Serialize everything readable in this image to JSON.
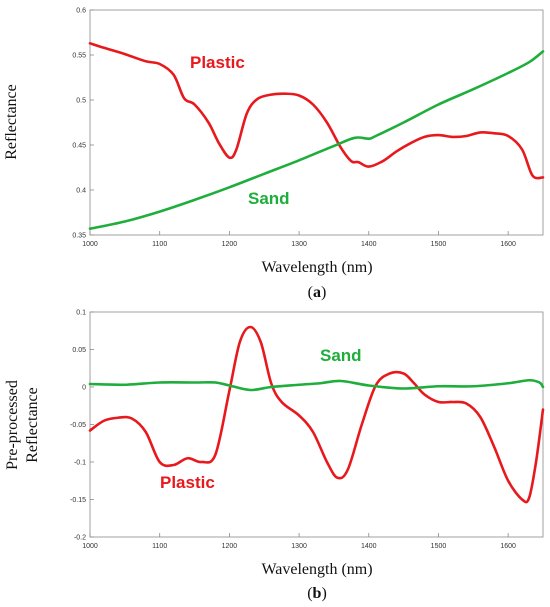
{
  "chart_data": [
    {
      "type": "line",
      "panel_label": "(a)",
      "panel_letter": "a",
      "xlabel": "Wavelength (nm)",
      "ylabel": "Reflectance",
      "xlim": [
        1000,
        1650
      ],
      "ylim": [
        0.35,
        0.6
      ],
      "xticks": [
        "1000",
        "1100",
        "1200",
        "1300",
        "1400",
        "1500",
        "1600"
      ],
      "yticks": [
        "0.35",
        "0.4",
        "0.45",
        "0.5",
        "0.55",
        "0.6"
      ],
      "series": [
        {
          "name": "Plastic",
          "color": "#e8191c",
          "x": [
            1000,
            1020,
            1050,
            1080,
            1100,
            1120,
            1135,
            1150,
            1170,
            1185,
            1200,
            1210,
            1225,
            1240,
            1260,
            1280,
            1300,
            1320,
            1340,
            1360,
            1375,
            1385,
            1400,
            1420,
            1440,
            1460,
            1480,
            1500,
            1520,
            1540,
            1560,
            1580,
            1600,
            1620,
            1635,
            1650
          ],
          "y": [
            0.563,
            0.558,
            0.551,
            0.543,
            0.54,
            0.528,
            0.502,
            0.495,
            0.475,
            0.452,
            0.436,
            0.445,
            0.485,
            0.501,
            0.506,
            0.507,
            0.505,
            0.495,
            0.475,
            0.447,
            0.432,
            0.431,
            0.426,
            0.432,
            0.443,
            0.452,
            0.459,
            0.461,
            0.459,
            0.46,
            0.464,
            0.463,
            0.46,
            0.445,
            0.416,
            0.414
          ]
        },
        {
          "name": "Sand",
          "color": "#1fae3c",
          "x": [
            1000,
            1050,
            1100,
            1150,
            1200,
            1250,
            1300,
            1350,
            1380,
            1400,
            1410,
            1450,
            1500,
            1550,
            1600,
            1630,
            1650
          ],
          "y": [
            0.357,
            0.365,
            0.376,
            0.389,
            0.403,
            0.418,
            0.433,
            0.449,
            0.458,
            0.457,
            0.46,
            0.475,
            0.495,
            0.512,
            0.53,
            0.542,
            0.554
          ]
        }
      ]
    },
    {
      "type": "line",
      "panel_label": "(b)",
      "panel_letter": "b",
      "xlabel": "Wavelength (nm)",
      "ylabel_line1": "Pre-processed",
      "ylabel_line2": "Reflectance",
      "xlim": [
        1000,
        1650
      ],
      "ylim": [
        -0.2,
        0.1
      ],
      "xticks": [
        "1000",
        "1100",
        "1200",
        "1300",
        "1400",
        "1500",
        "1600"
      ],
      "yticks": [
        "-0.2",
        "-0.15",
        "-0.1",
        "-0.05",
        "0",
        "0.05",
        "0.1"
      ],
      "series": [
        {
          "name": "Plastic",
          "color": "#e8191c",
          "x": [
            1000,
            1020,
            1040,
            1060,
            1080,
            1100,
            1120,
            1140,
            1160,
            1180,
            1200,
            1215,
            1230,
            1245,
            1260,
            1275,
            1300,
            1320,
            1340,
            1355,
            1370,
            1390,
            1410,
            1430,
            1450,
            1465,
            1480,
            1500,
            1520,
            1540,
            1560,
            1580,
            1600,
            1620,
            1630,
            1640,
            1650
          ],
          "y": [
            -0.058,
            -0.045,
            -0.041,
            -0.042,
            -0.06,
            -0.1,
            -0.104,
            -0.095,
            -0.1,
            -0.09,
            -0.005,
            0.06,
            0.08,
            0.06,
            0.005,
            -0.02,
            -0.038,
            -0.06,
            -0.1,
            -0.121,
            -0.11,
            -0.05,
            0.002,
            0.018,
            0.018,
            0.005,
            -0.01,
            -0.02,
            -0.02,
            -0.022,
            -0.04,
            -0.08,
            -0.125,
            -0.15,
            -0.148,
            -0.1,
            -0.03
          ]
        },
        {
          "name": "Sand",
          "color": "#1fae3c",
          "x": [
            1000,
            1050,
            1100,
            1150,
            1180,
            1200,
            1230,
            1260,
            1300,
            1330,
            1360,
            1400,
            1450,
            1500,
            1550,
            1600,
            1630,
            1645,
            1650
          ],
          "y": [
            0.004,
            0.003,
            0.006,
            0.006,
            0.006,
            0.002,
            -0.004,
            0.0,
            0.003,
            0.005,
            0.008,
            0.002,
            -0.002,
            0.001,
            0.001,
            0.005,
            0.009,
            0.006,
            0.0
          ]
        }
      ]
    }
  ]
}
